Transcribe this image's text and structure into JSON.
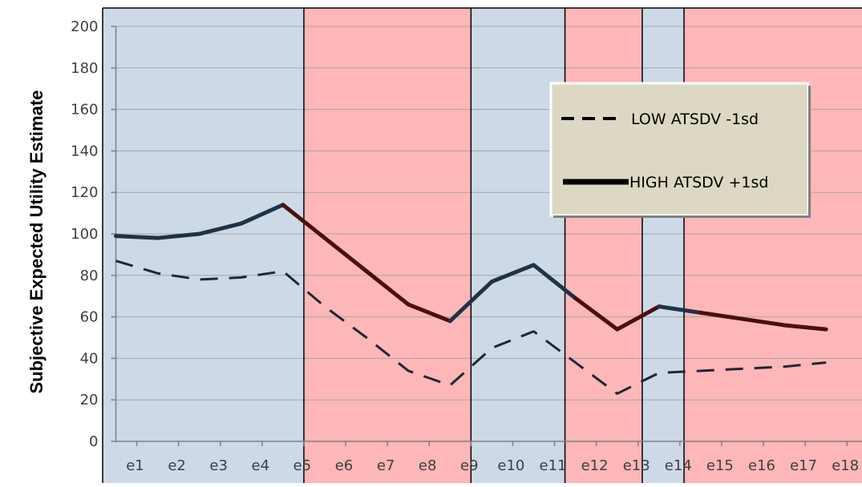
{
  "colors": {
    "blue_band": "#cdd9e7",
    "red_band": "#fdb7b8",
    "gridline": "#a6a6a6",
    "line_low": "#1f2833",
    "line_high_on_blue": "#1f3246",
    "line_high_on_red": "#4a1010",
    "legend_bg": "#ddd8c3",
    "legend_line": "#000000",
    "band_divider": "#000000"
  },
  "chart_data": {
    "type": "line",
    "title": "",
    "xlabel": "",
    "ylabel": "Subjective Expected Utility Estimate",
    "categories": [
      "e1",
      "e2",
      "e3",
      "e4",
      "e5",
      "e6",
      "e7",
      "e8",
      "e9",
      "e10",
      "e11",
      "e12",
      "e13",
      "e14",
      "e15",
      "e16",
      "e17",
      "e18"
    ],
    "ylim": [
      0,
      200
    ],
    "yticks": [
      0,
      20,
      40,
      60,
      80,
      100,
      120,
      140,
      160,
      180,
      200
    ],
    "grid": true,
    "legend_position": "upper right",
    "background_bands": [
      {
        "from": 0.5,
        "to": 5.5,
        "color": "blue"
      },
      {
        "from": 5.5,
        "to": 9.5,
        "color": "red"
      },
      {
        "from": 9.5,
        "to": 11.75,
        "color": "blue"
      },
      {
        "from": 11.75,
        "to": 13.6,
        "color": "red"
      },
      {
        "from": 13.6,
        "to": 14.6,
        "color": "blue"
      },
      {
        "from": 14.6,
        "to": 18.5,
        "color": "red"
      }
    ],
    "series": [
      {
        "name": "LOW ATSDV -1sd",
        "style": "dashed",
        "values": [
          87,
          81,
          78,
          79,
          82,
          65,
          50,
          34,
          27,
          45,
          53,
          38,
          23,
          33,
          34,
          35,
          36,
          38
        ]
      },
      {
        "name": "HIGH ATSDV +1sd",
        "style": "solid",
        "values": [
          99,
          98,
          100,
          105,
          114,
          98,
          82,
          66,
          58,
          77,
          85,
          69,
          54,
          65,
          62,
          59,
          56,
          54
        ]
      }
    ]
  }
}
